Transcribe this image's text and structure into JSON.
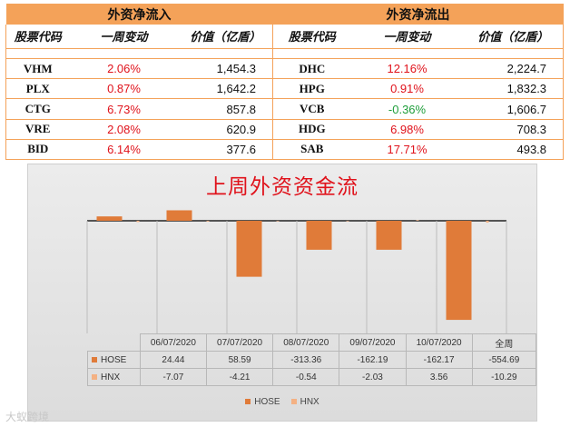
{
  "flow_table": {
    "inflow_title": "外资净流入",
    "outflow_title": "外资净流出",
    "headers": [
      "股票代码",
      "一周变动",
      "价值（亿盾）",
      "股票代码",
      "一周变动",
      "价值（亿盾）"
    ],
    "inflow_rows": [
      {
        "ticker": "VHM",
        "change": "2.06%",
        "value": "1,454.3"
      },
      {
        "ticker": "PLX",
        "change": "0.87%",
        "value": "1,642.2"
      },
      {
        "ticker": "CTG",
        "change": "6.73%",
        "value": "857.8"
      },
      {
        "ticker": "VRE",
        "change": "2.08%",
        "value": "620.9"
      },
      {
        "ticker": "BID",
        "change": "6.14%",
        "value": "377.6"
      }
    ],
    "outflow_rows": [
      {
        "ticker": "DHC",
        "change": "12.16%",
        "value": "2,224.7"
      },
      {
        "ticker": "HPG",
        "change": "0.91%",
        "value": "1,832.3"
      },
      {
        "ticker": "VCB",
        "change": "-0.36%",
        "value": "1,606.7"
      },
      {
        "ticker": "HDG",
        "change": "6.98%",
        "value": "708.3"
      },
      {
        "ticker": "SAB",
        "change": "17.71%",
        "value": "493.8"
      }
    ],
    "colors": {
      "header_fill": "#f4a259",
      "change_up": "#e0121b",
      "change_down": "#1e9e3a"
    }
  },
  "chart_data": {
    "type": "bar",
    "title": "上周外资资金流",
    "categories": [
      "06/07/2020",
      "07/07/2020",
      "08/07/2020",
      "09/07/2020",
      "10/07/2020",
      "全周"
    ],
    "series": [
      {
        "name": "HOSE",
        "values": [
          24.44,
          58.59,
          -313.36,
          -162.19,
          -162.17,
          -554.69
        ],
        "labels": [
          "24.44",
          "58.59",
          "-313.36",
          "-162.19",
          "-162.17",
          "-554.69"
        ],
        "color": "#e07b39"
      },
      {
        "name": "HNX",
        "values": [
          -7.07,
          -4.21,
          -0.54,
          -2.03,
          3.56,
          -10.29
        ],
        "labels": [
          "-7.07",
          "-4.21",
          "-0.54",
          "-2.03",
          "3.56",
          "-10.29"
        ],
        "color": "#f4b183"
      }
    ],
    "ylim": [
      -600,
      60
    ],
    "legend": "bottom",
    "grid": false
  },
  "watermark": "大蚁跨境"
}
